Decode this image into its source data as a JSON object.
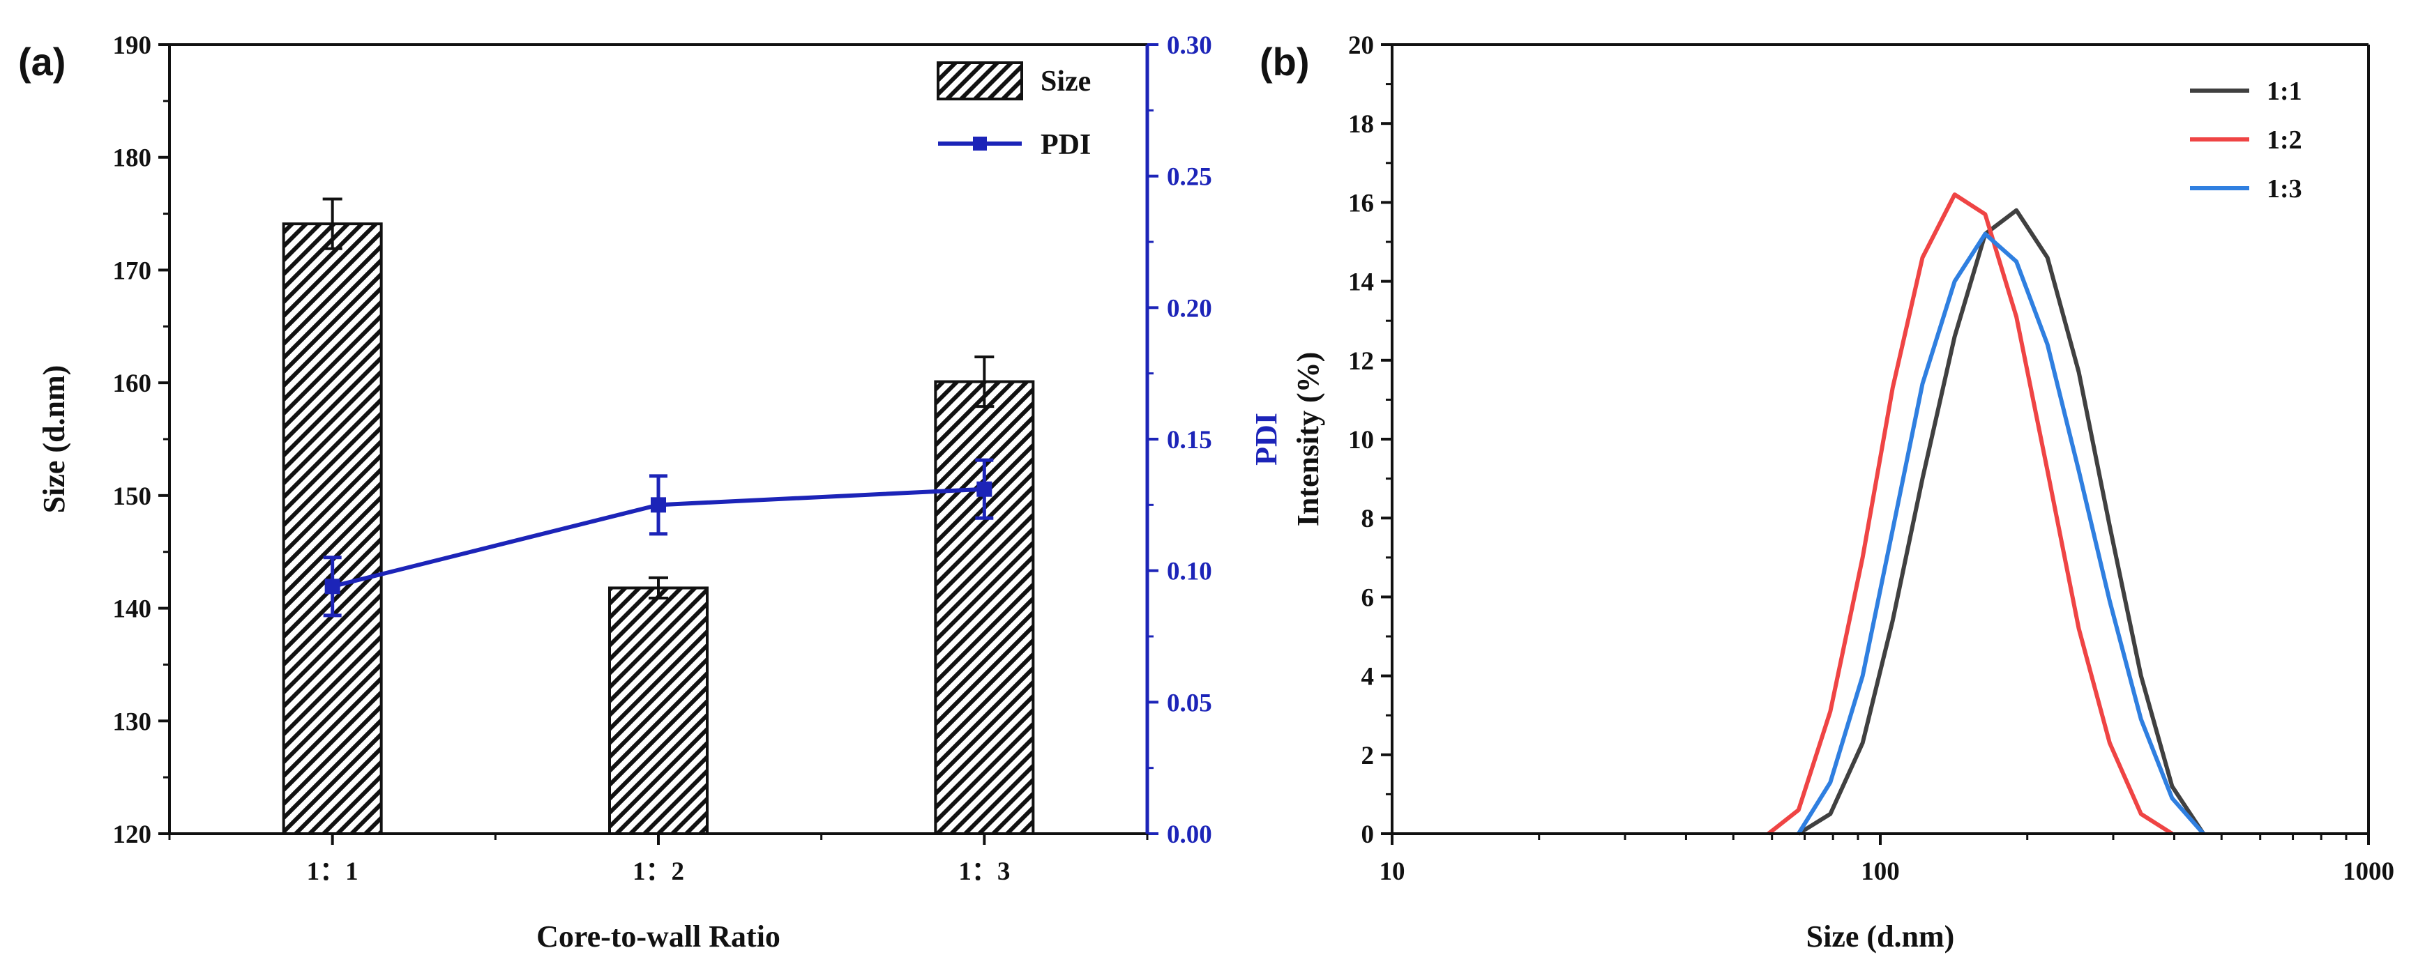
{
  "chart_data": [
    {
      "panel": "(a)",
      "type": "bar",
      "xlabel": "Core-to-wall Ratio",
      "ylabel": "Size (d.nm)",
      "y2label": "PDI",
      "categories": [
        "1：1",
        "1：2",
        "1：3"
      ],
      "ylim": [
        120,
        190
      ],
      "yticks": [
        120,
        130,
        140,
        150,
        160,
        170,
        180,
        190
      ],
      "y2lim": [
        0.0,
        0.3
      ],
      "y2ticks": [
        "0.00",
        "0.05",
        "0.10",
        "0.15",
        "0.20",
        "0.25",
        "0.30"
      ],
      "series": [
        {
          "name": "Size",
          "kind": "bar",
          "hatch": "diagonal",
          "values": [
            174.1,
            141.8,
            160.1
          ],
          "errors": [
            2.2,
            0.9,
            2.2
          ]
        },
        {
          "name": "PDI",
          "kind": "line",
          "axis": "y2",
          "color": "#1c24b8",
          "values": [
            0.094,
            0.125,
            0.131
          ],
          "errors": [
            0.011,
            0.011,
            0.011
          ]
        }
      ],
      "legend": [
        "Size",
        "PDI"
      ],
      "legend_position": "top-right"
    },
    {
      "panel": "(b)",
      "type": "line",
      "xscale": "log",
      "xlabel": "Size (d.nm)",
      "ylabel": "Intensity (%)",
      "xlim": [
        10,
        1000
      ],
      "xticks": [
        "10",
        "100",
        "1000"
      ],
      "ylim": [
        0,
        20
      ],
      "yticks": [
        0,
        2,
        4,
        6,
        8,
        10,
        12,
        14,
        16,
        18,
        20
      ],
      "legend_position": "top-right",
      "series": [
        {
          "name": "1:1",
          "color": "#404040",
          "x": [
            68,
            79,
            92,
            106,
            122,
            142,
            164,
            190,
            220,
            255,
            295,
            342,
            396,
            459
          ],
          "y": [
            0,
            0.5,
            2.3,
            5.4,
            9.0,
            12.6,
            15.2,
            15.8,
            14.6,
            11.7,
            7.8,
            4.0,
            1.2,
            0
          ]
        },
        {
          "name": "1:2",
          "color": "#ef4444",
          "x": [
            59,
            68,
            79,
            92,
            106,
            122,
            142,
            164,
            190,
            220,
            255,
            295,
            342,
            396
          ],
          "y": [
            0,
            0.6,
            3.1,
            7.0,
            11.3,
            14.6,
            16.2,
            15.7,
            13.1,
            9.2,
            5.2,
            2.3,
            0.5,
            0
          ]
        },
        {
          "name": "1:3",
          "color": "#2f7fe0",
          "x": [
            68,
            79,
            92,
            106,
            122,
            142,
            164,
            190,
            220,
            255,
            295,
            342,
            396,
            459
          ],
          "y": [
            0,
            1.3,
            4.0,
            7.7,
            11.4,
            14.0,
            15.2,
            14.5,
            12.4,
            9.2,
            5.9,
            2.9,
            0.9,
            0
          ]
        }
      ]
    }
  ]
}
